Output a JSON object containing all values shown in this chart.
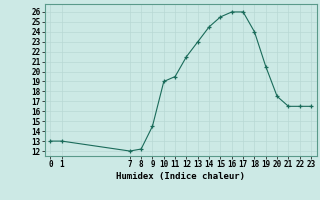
{
  "x": [
    0,
    1,
    7,
    8,
    9,
    10,
    11,
    12,
    13,
    14,
    15,
    16,
    17,
    18,
    19,
    20,
    21,
    22,
    23
  ],
  "y": [
    13.0,
    13.0,
    12.0,
    12.2,
    14.5,
    19.0,
    19.5,
    21.5,
    23.0,
    24.5,
    25.5,
    26.0,
    26.0,
    24.0,
    20.5,
    17.5,
    16.5,
    16.5,
    16.5
  ],
  "xticks": [
    0,
    1,
    7,
    8,
    9,
    10,
    11,
    12,
    13,
    14,
    15,
    16,
    17,
    18,
    19,
    20,
    21,
    22,
    23
  ],
  "yticks": [
    12,
    13,
    14,
    15,
    16,
    17,
    18,
    19,
    20,
    21,
    22,
    23,
    24,
    25,
    26
  ],
  "ylim": [
    11.5,
    26.8
  ],
  "xlim": [
    -0.5,
    23.5
  ],
  "xlabel": "Humidex (Indice chaleur)",
  "line_color": "#1a6b5a",
  "marker_color": "#1a6b5a",
  "bg_color": "#cce9e5",
  "grid_color": "#b8d8d4",
  "tick_fontsize": 5.5,
  "xlabel_fontsize": 6.5
}
